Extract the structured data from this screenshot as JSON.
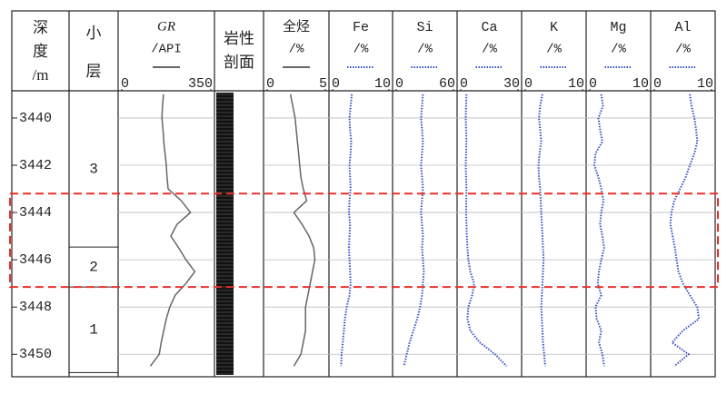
{
  "chart_data": {
    "type": "well-log",
    "depth_label": [
      "深",
      "度",
      "/m"
    ],
    "ylim": [
      3438.85,
      3450.95
    ],
    "yticks": [
      3440,
      3442,
      3444,
      3446,
      3448,
      3450
    ],
    "zone_label": [
      "小",
      "层"
    ],
    "zones": [
      {
        "name": "3",
        "top": 3438.85,
        "bottom": 3445.46
      },
      {
        "name": "2",
        "top": 3445.46,
        "bottom": 3447.15
      },
      {
        "name": "1",
        "top": 3447.15,
        "bottom": 3450.77
      }
    ],
    "lithology_label": [
      "岩性",
      "剖面"
    ],
    "highlight": {
      "top": 3443.2,
      "bottom": 3447.15,
      "color": "#e8302a"
    },
    "depths": [
      3439,
      3439.5,
      3440,
      3440.5,
      3441,
      3441.5,
      3442,
      3442.5,
      3443,
      3443.5,
      3444,
      3444.5,
      3445,
      3445.5,
      3446,
      3446.5,
      3447,
      3447.5,
      3448,
      3448.5,
      3449,
      3449.5,
      3450,
      3450.5
    ],
    "curves": [
      {
        "name": "GR",
        "italic": true,
        "unit": "/API",
        "xlim": [
          0,
          350
        ],
        "xticks": [
          0,
          350
        ],
        "color": "#666666",
        "style": "solid",
        "values": [
          164,
          160,
          158,
          162,
          165,
          170,
          175,
          178,
          182,
          234,
          270,
          217,
          193,
          224,
          252,
          287,
          252,
          210,
          189,
          175,
          165,
          155,
          147,
          112
        ]
      },
      {
        "name": "全烃",
        "italic": false,
        "unit": "/%",
        "xlim": [
          0,
          5
        ],
        "xticks": [
          0,
          5
        ],
        "color": "#666666",
        "style": "solid",
        "values": [
          2.0,
          2.2,
          2.4,
          2.5,
          2.6,
          2.7,
          2.8,
          2.9,
          3.1,
          3.4,
          2.3,
          3.0,
          3.6,
          4.0,
          4.1,
          3.9,
          3.7,
          3.5,
          3.3,
          3.3,
          3.3,
          3.1,
          2.9,
          2.3
        ]
      },
      {
        "name": "Fe",
        "italic": false,
        "unit": "/%",
        "xlim": [
          0,
          10
        ],
        "xticks": [
          0,
          10
        ],
        "color": "#3a4fc4",
        "style": "dotted",
        "values": [
          3.4,
          3.2,
          3.0,
          3.1,
          3.3,
          3.2,
          3.0,
          3.1,
          3.2,
          3.0,
          2.9,
          3.1,
          3.0,
          2.9,
          3.0,
          3.1,
          3.2,
          3.0,
          2.5,
          2.2,
          2.0,
          1.8,
          1.6,
          1.5
        ]
      },
      {
        "name": "Si",
        "italic": false,
        "unit": "/%",
        "xlim": [
          0,
          60
        ],
        "xticks": [
          0,
          60
        ],
        "color": "#3a4fc4",
        "style": "dotted",
        "values": [
          28,
          27,
          26,
          27,
          28,
          27,
          26,
          27,
          28,
          27,
          26,
          27,
          28,
          27,
          28,
          29,
          28,
          27,
          25,
          22,
          18,
          14,
          11,
          8
        ]
      },
      {
        "name": "Ca",
        "italic": false,
        "unit": "/%",
        "xlim": [
          0,
          30
        ],
        "xticks": [
          0,
          30
        ],
        "color": "#3a4fc4",
        "style": "dotted",
        "values": [
          3.0,
          2.8,
          2.6,
          2.8,
          3.0,
          2.8,
          2.6,
          2.8,
          3.0,
          2.9,
          2.8,
          3.0,
          3.2,
          3.5,
          4.0,
          5.0,
          7.0,
          6.0,
          4.0,
          3.5,
          5.0,
          10,
          18,
          24
        ]
      },
      {
        "name": "K",
        "italic": false,
        "unit": "/%",
        "xlim": [
          0,
          10
        ],
        "xticks": [
          0,
          10
        ],
        "color": "#3a4fc4",
        "style": "dotted",
        "values": [
          3.0,
          2.6,
          2.4,
          2.6,
          2.8,
          2.5,
          2.3,
          2.4,
          2.6,
          2.7,
          2.8,
          2.9,
          3.0,
          3.1,
          3.2,
          3.1,
          3.0,
          2.9,
          2.8,
          2.9,
          3.0,
          3.1,
          3.3,
          3.5
        ]
      },
      {
        "name": "Mg",
        "italic": false,
        "unit": "/%",
        "xlim": [
          0,
          10
        ],
        "xticks": [
          0,
          10
        ],
        "color": "#3a4fc4",
        "style": "dotted",
        "values": [
          2.0,
          2.3,
          1.5,
          1.8,
          2.2,
          1.0,
          0.8,
          1.5,
          2.0,
          2.4,
          2.0,
          1.8,
          2.2,
          2.5,
          2.0,
          1.6,
          1.4,
          2.0,
          1.0,
          1.2,
          2.0,
          1.6,
          2.2,
          2.5
        ]
      },
      {
        "name": "Al",
        "italic": false,
        "unit": "/%",
        "xlim": [
          0,
          10
        ],
        "xticks": [
          0,
          10
        ],
        "color": "#3a4fc4",
        "style": "dotted",
        "values": [
          6.2,
          6.5,
          7.0,
          7.3,
          7.5,
          7.0,
          6.2,
          5.5,
          4.5,
          3.5,
          3.0,
          2.8,
          3.2,
          3.6,
          3.9,
          4.2,
          5.0,
          6.2,
          7.5,
          7.8,
          5.0,
          3.1,
          6.0,
          3.5
        ]
      }
    ]
  }
}
